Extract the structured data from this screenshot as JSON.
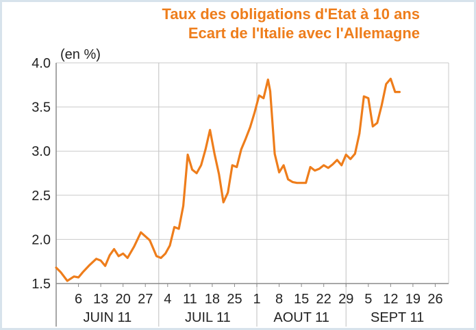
{
  "header": {
    "title_line1": "Taux des obligations d'Etat à 10 ans",
    "title_line2": "Ecart de l'Italie avec l'Allemagne"
  },
  "colors": {
    "series": "#ee7d1b",
    "title": "#ee7d1b",
    "grid": "#c9c9c9",
    "axis": "#8a8a8a",
    "frame": "#d7e3ec"
  },
  "chart_data": {
    "type": "line",
    "title": "Taux des obligations d'Etat à 10 ans Ecart de l'Italie avec l'Allemagne",
    "ylabel": "(en %)",
    "xlabel": "",
    "ylim": [
      1.5,
      4.0
    ],
    "yticks": [
      "1.5",
      "2.0",
      "2.5",
      "3.0",
      "3.5",
      "4.0"
    ],
    "ytick_values": [
      1.5,
      2.0,
      2.5,
      3.0,
      3.5,
      4.0
    ],
    "xlim": [
      0,
      17
    ],
    "xticks": [
      {
        "label": "6",
        "x": 1
      },
      {
        "label": "13",
        "x": 2
      },
      {
        "label": "20",
        "x": 3
      },
      {
        "label": "27",
        "x": 4
      },
      {
        "label": "4",
        "x": 5
      },
      {
        "label": "11",
        "x": 6
      },
      {
        "label": "18",
        "x": 7
      },
      {
        "label": "25",
        "x": 8
      },
      {
        "label": "1",
        "x": 9
      },
      {
        "label": "8",
        "x": 10
      },
      {
        "label": "15",
        "x": 11
      },
      {
        "label": "22",
        "x": 12
      },
      {
        "label": "29",
        "x": 13
      },
      {
        "label": "5",
        "x": 14
      },
      {
        "label": "12",
        "x": 15
      },
      {
        "label": "19",
        "x": 16
      },
      {
        "label": "26",
        "x": 17
      }
    ],
    "months": [
      {
        "label": "JUIN 11",
        "start": 0,
        "end": 4.6
      },
      {
        "label": "JUIL 11",
        "start": 4.6,
        "end": 9.0
      },
      {
        "label": "AOUT 11",
        "start": 9.0,
        "end": 13.0
      },
      {
        "label": "SEPT 11",
        "start": 13.0,
        "end": 17.6
      }
    ],
    "grid": true,
    "series": [
      {
        "x": [
          0.0,
          0.2,
          0.5,
          0.8,
          1.0,
          1.2,
          1.5,
          1.8,
          2.0,
          2.2,
          2.4,
          2.6,
          2.8,
          3.0,
          3.2,
          3.5,
          3.8,
          4.2,
          4.5,
          4.7,
          4.9,
          5.1,
          5.3,
          5.5,
          5.7,
          5.9,
          6.1,
          6.3,
          6.5,
          6.7,
          6.9,
          7.1,
          7.3,
          7.5,
          7.7,
          7.9,
          8.1,
          8.3,
          8.5,
          8.7,
          8.9,
          9.1,
          9.3,
          9.5,
          9.6,
          9.8,
          10.0,
          10.2,
          10.4,
          10.6,
          10.8,
          11.0,
          11.2,
          11.4,
          11.6,
          11.8,
          12.0,
          12.2,
          12.4,
          12.6,
          12.8,
          13.0,
          13.2,
          13.4,
          13.6,
          13.8,
          14.0,
          14.2,
          14.4,
          14.6,
          14.8,
          15.0,
          15.2,
          15.4
        ],
        "y": [
          1.68,
          1.63,
          1.53,
          1.58,
          1.57,
          1.63,
          1.71,
          1.78,
          1.76,
          1.7,
          1.82,
          1.89,
          1.81,
          1.84,
          1.79,
          1.92,
          2.08,
          1.99,
          1.81,
          1.79,
          1.84,
          1.93,
          2.14,
          2.12,
          2.38,
          2.96,
          2.79,
          2.75,
          2.84,
          3.02,
          3.24,
          2.97,
          2.74,
          2.42,
          2.53,
          2.84,
          2.82,
          3.02,
          3.14,
          3.27,
          3.44,
          3.63,
          3.6,
          3.81,
          3.68,
          2.97,
          2.76,
          2.84,
          2.68,
          2.65,
          2.64,
          2.64,
          2.64,
          2.82,
          2.78,
          2.8,
          2.84,
          2.81,
          2.85,
          2.9,
          2.84,
          2.96,
          2.91,
          2.97,
          3.2,
          3.62,
          3.6,
          3.28,
          3.32,
          3.52,
          3.76,
          3.82,
          3.67,
          3.67
        ]
      }
    ]
  }
}
